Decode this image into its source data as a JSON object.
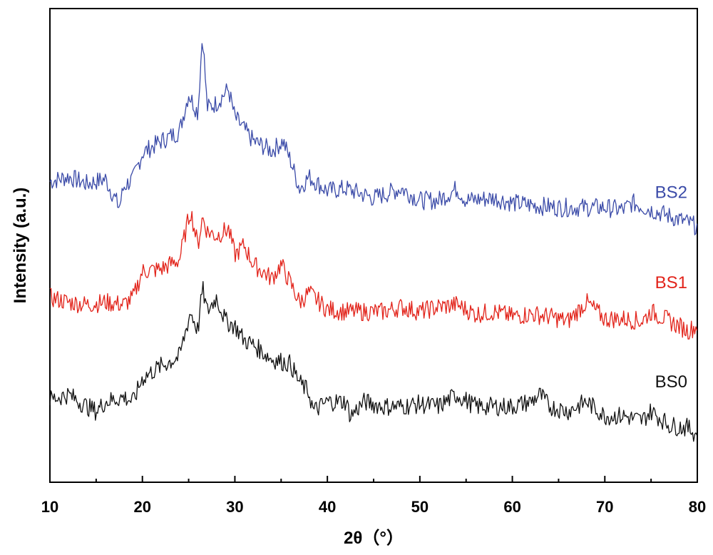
{
  "chart_data": {
    "type": "line",
    "title": "",
    "xlabel": "2θ（°）",
    "ylabel": "Intensity (a.u.)",
    "xlim": [
      10,
      80
    ],
    "ylim": [
      0,
      1
    ],
    "x_ticks": [
      10,
      20,
      30,
      40,
      50,
      60,
      70,
      80
    ],
    "x_tick_labels": [
      "10",
      "20",
      "30",
      "40",
      "50",
      "60",
      "70",
      "80"
    ],
    "y_ticks_shown": false,
    "grid": false,
    "legend": "inline labels at right",
    "series": [
      {
        "name": "BS2",
        "color": "#3b4ba8",
        "points": [
          [
            10,
            0.635
          ],
          [
            12,
            0.645
          ],
          [
            14,
            0.63
          ],
          [
            16,
            0.64
          ],
          [
            17.5,
            0.58
          ],
          [
            18,
            0.625
          ],
          [
            19,
            0.64
          ],
          [
            20,
            0.695
          ],
          [
            22,
            0.72
          ],
          [
            24,
            0.74
          ],
          [
            25,
            0.82
          ],
          [
            26,
            0.78
          ],
          [
            26.5,
            0.95
          ],
          [
            27,
            0.79
          ],
          [
            28,
            0.8
          ],
          [
            29.3,
            0.83
          ],
          [
            30,
            0.77
          ],
          [
            32,
            0.72
          ],
          [
            34,
            0.7
          ],
          [
            35.2,
            0.72
          ],
          [
            36,
            0.68
          ],
          [
            37,
            0.62
          ],
          [
            38,
            0.645
          ],
          [
            40,
            0.615
          ],
          [
            42,
            0.62
          ],
          [
            45,
            0.6
          ],
          [
            48,
            0.62
          ],
          [
            50,
            0.595
          ],
          [
            52,
            0.595
          ],
          [
            54,
            0.62
          ],
          [
            55,
            0.595
          ],
          [
            58,
            0.6
          ],
          [
            60,
            0.59
          ],
          [
            62,
            0.585
          ],
          [
            65,
            0.58
          ],
          [
            68,
            0.58
          ],
          [
            70,
            0.58
          ],
          [
            72,
            0.575
          ],
          [
            73,
            0.59
          ],
          [
            75,
            0.575
          ],
          [
            78,
            0.555
          ],
          [
            80,
            0.54
          ]
        ]
      },
      {
        "name": "BS1",
        "color": "#e2231a",
        "points": [
          [
            10,
            0.39
          ],
          [
            12,
            0.38
          ],
          [
            14,
            0.375
          ],
          [
            16,
            0.38
          ],
          [
            18,
            0.375
          ],
          [
            19,
            0.39
          ],
          [
            20,
            0.445
          ],
          [
            22,
            0.45
          ],
          [
            24,
            0.47
          ],
          [
            25.2,
            0.575
          ],
          [
            26,
            0.5
          ],
          [
            26.5,
            0.56
          ],
          [
            27,
            0.53
          ],
          [
            28,
            0.52
          ],
          [
            29.3,
            0.535
          ],
          [
            30,
            0.48
          ],
          [
            31,
            0.5
          ],
          [
            32,
            0.46
          ],
          [
            34,
            0.43
          ],
          [
            35,
            0.46
          ],
          [
            36,
            0.42
          ],
          [
            37,
            0.38
          ],
          [
            38,
            0.4
          ],
          [
            40,
            0.365
          ],
          [
            42,
            0.36
          ],
          [
            44,
            0.36
          ],
          [
            46,
            0.36
          ],
          [
            48,
            0.37
          ],
          [
            50,
            0.36
          ],
          [
            52,
            0.37
          ],
          [
            54,
            0.375
          ],
          [
            56,
            0.355
          ],
          [
            58,
            0.36
          ],
          [
            60,
            0.35
          ],
          [
            62,
            0.355
          ],
          [
            64,
            0.35
          ],
          [
            66,
            0.34
          ],
          [
            68,
            0.38
          ],
          [
            70,
            0.345
          ],
          [
            72,
            0.345
          ],
          [
            74,
            0.34
          ],
          [
            75,
            0.36
          ],
          [
            77,
            0.34
          ],
          [
            79,
            0.32
          ],
          [
            80,
            0.33
          ]
        ]
      },
      {
        "name": "BS0",
        "color": "#111111",
        "points": [
          [
            10,
            0.175
          ],
          [
            12,
            0.185
          ],
          [
            14,
            0.16
          ],
          [
            15,
            0.15
          ],
          [
            16,
            0.17
          ],
          [
            18,
            0.18
          ],
          [
            19,
            0.17
          ],
          [
            20,
            0.22
          ],
          [
            22,
            0.245
          ],
          [
            24,
            0.265
          ],
          [
            25.2,
            0.36
          ],
          [
            26,
            0.32
          ],
          [
            26.5,
            0.41
          ],
          [
            27,
            0.36
          ],
          [
            28,
            0.39
          ],
          [
            29,
            0.34
          ],
          [
            30,
            0.33
          ],
          [
            31,
            0.3
          ],
          [
            32,
            0.29
          ],
          [
            34,
            0.26
          ],
          [
            35,
            0.255
          ],
          [
            36,
            0.25
          ],
          [
            37,
            0.21
          ],
          [
            38,
            0.19
          ],
          [
            38.5,
            0.15
          ],
          [
            40,
            0.17
          ],
          [
            42,
            0.17
          ],
          [
            42.5,
            0.14
          ],
          [
            44,
            0.17
          ],
          [
            46,
            0.16
          ],
          [
            48,
            0.16
          ],
          [
            50,
            0.165
          ],
          [
            52,
            0.16
          ],
          [
            54,
            0.185
          ],
          [
            56,
            0.16
          ],
          [
            58,
            0.16
          ],
          [
            60,
            0.16
          ],
          [
            62,
            0.17
          ],
          [
            63,
            0.185
          ],
          [
            64,
            0.16
          ],
          [
            66,
            0.15
          ],
          [
            68,
            0.17
          ],
          [
            70,
            0.14
          ],
          [
            72,
            0.14
          ],
          [
            74,
            0.13
          ],
          [
            75,
            0.15
          ],
          [
            77,
            0.12
          ],
          [
            79,
            0.115
          ],
          [
            80,
            0.1
          ]
        ]
      }
    ]
  }
}
